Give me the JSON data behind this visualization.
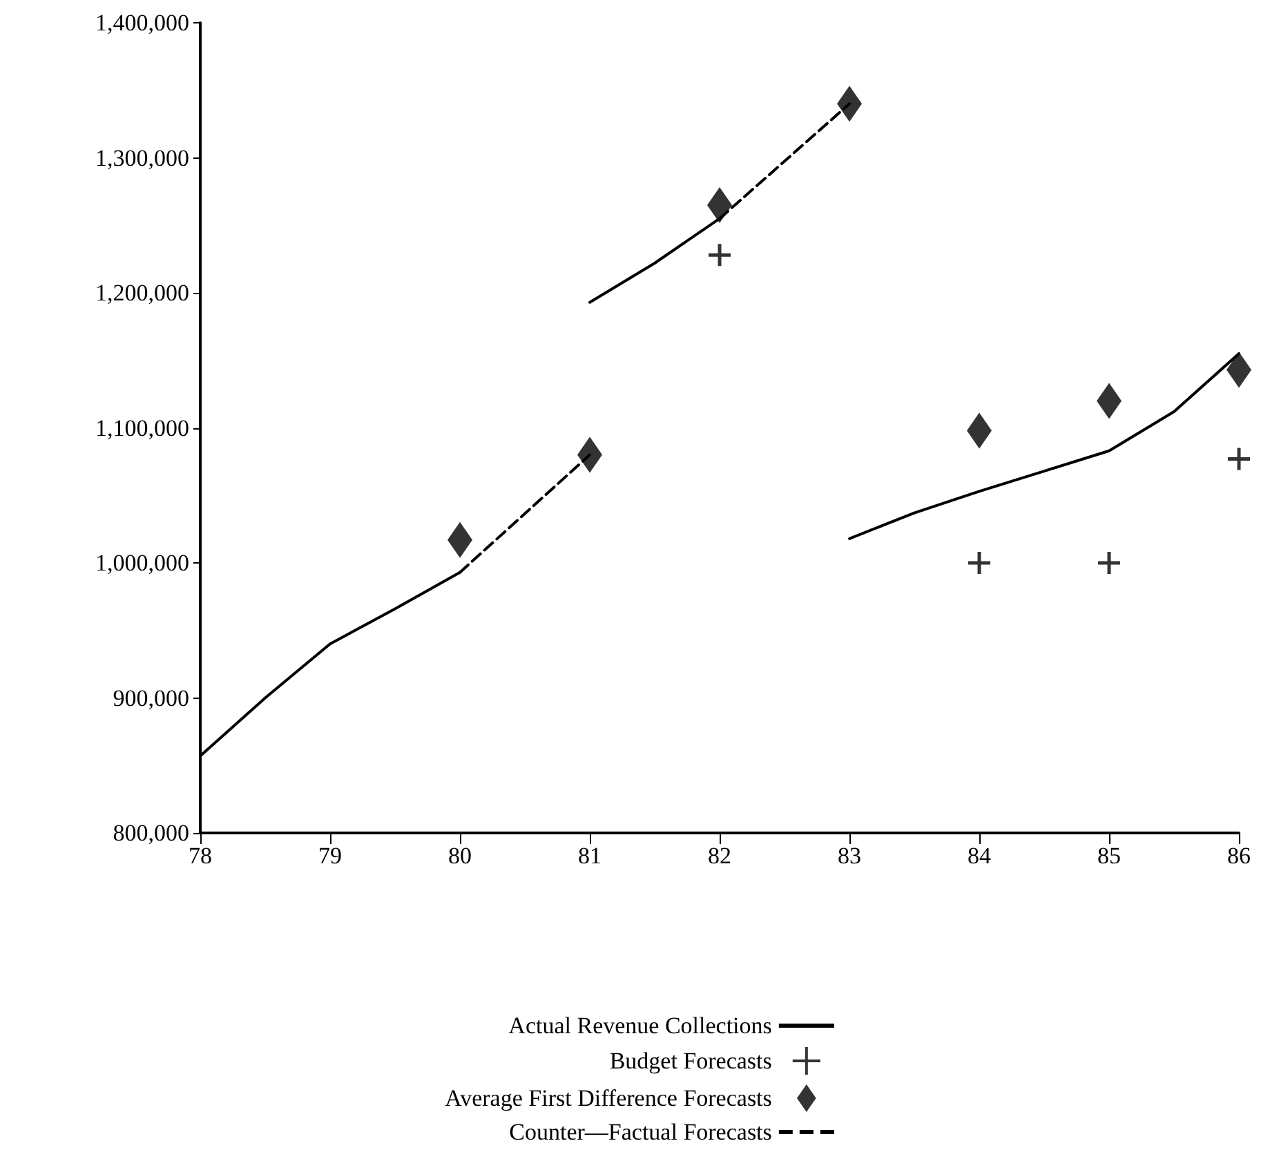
{
  "chart_data": {
    "type": "line",
    "xlim": [
      78,
      86
    ],
    "xticks": [
      78,
      79,
      80,
      81,
      82,
      83,
      84,
      85,
      86
    ],
    "ylim": [
      800000,
      1400000
    ],
    "yticks": [
      {
        "value": 800000,
        "label": "800,000"
      },
      {
        "value": 900000,
        "label": "900,000"
      },
      {
        "value": 1000000,
        "label": "1,000,000"
      },
      {
        "value": 1100000,
        "label": "1,100,000"
      },
      {
        "value": 1200000,
        "label": "1,200,000"
      },
      {
        "value": 1300000,
        "label": "1,300,000"
      },
      {
        "value": 1400000,
        "label": "1,400,000"
      }
    ],
    "grid": false,
    "legend": "bottom",
    "series": [
      {
        "name": "Actual Revenue Collections",
        "color": "#000000",
        "line_style": "solid",
        "marker": "none",
        "x": [
          78,
          78.5,
          79,
          79.5,
          80,
          80.5,
          81,
          81.5,
          82,
          82.5,
          83,
          83.5,
          84,
          84.5,
          85,
          85.5,
          86
        ],
        "values": [
          857000,
          900000,
          940000,
          966000,
          993000,
          null,
          1193000,
          1222000,
          1255000,
          null,
          1018000,
          1037000,
          1053000,
          1068000,
          1083000,
          1112000,
          1155000
        ]
      },
      {
        "name": "Budget Forecasts",
        "type": "scatter",
        "color": "#000000",
        "marker": "cross",
        "x": [
          82,
          84,
          85,
          86
        ],
        "values": [
          1228000,
          1000000,
          1000000,
          1077000
        ]
      },
      {
        "name": "Average First Difference Forecasts",
        "type": "scatter",
        "color": "#000000",
        "marker": "diamond",
        "x": [
          80,
          81,
          82,
          83,
          84,
          85,
          86
        ],
        "values": [
          1017000,
          1080000,
          1265000,
          1340000,
          1098000,
          1120000,
          1143000
        ]
      },
      {
        "name": "Counter—Factual Forecasts",
        "color": "#000000",
        "line_style": "dashed",
        "marker": "none",
        "x": [
          80,
          81,
          81.5,
          82,
          83
        ],
        "values": [
          993000,
          1080000,
          null,
          1255000,
          1340000
        ]
      }
    ]
  }
}
